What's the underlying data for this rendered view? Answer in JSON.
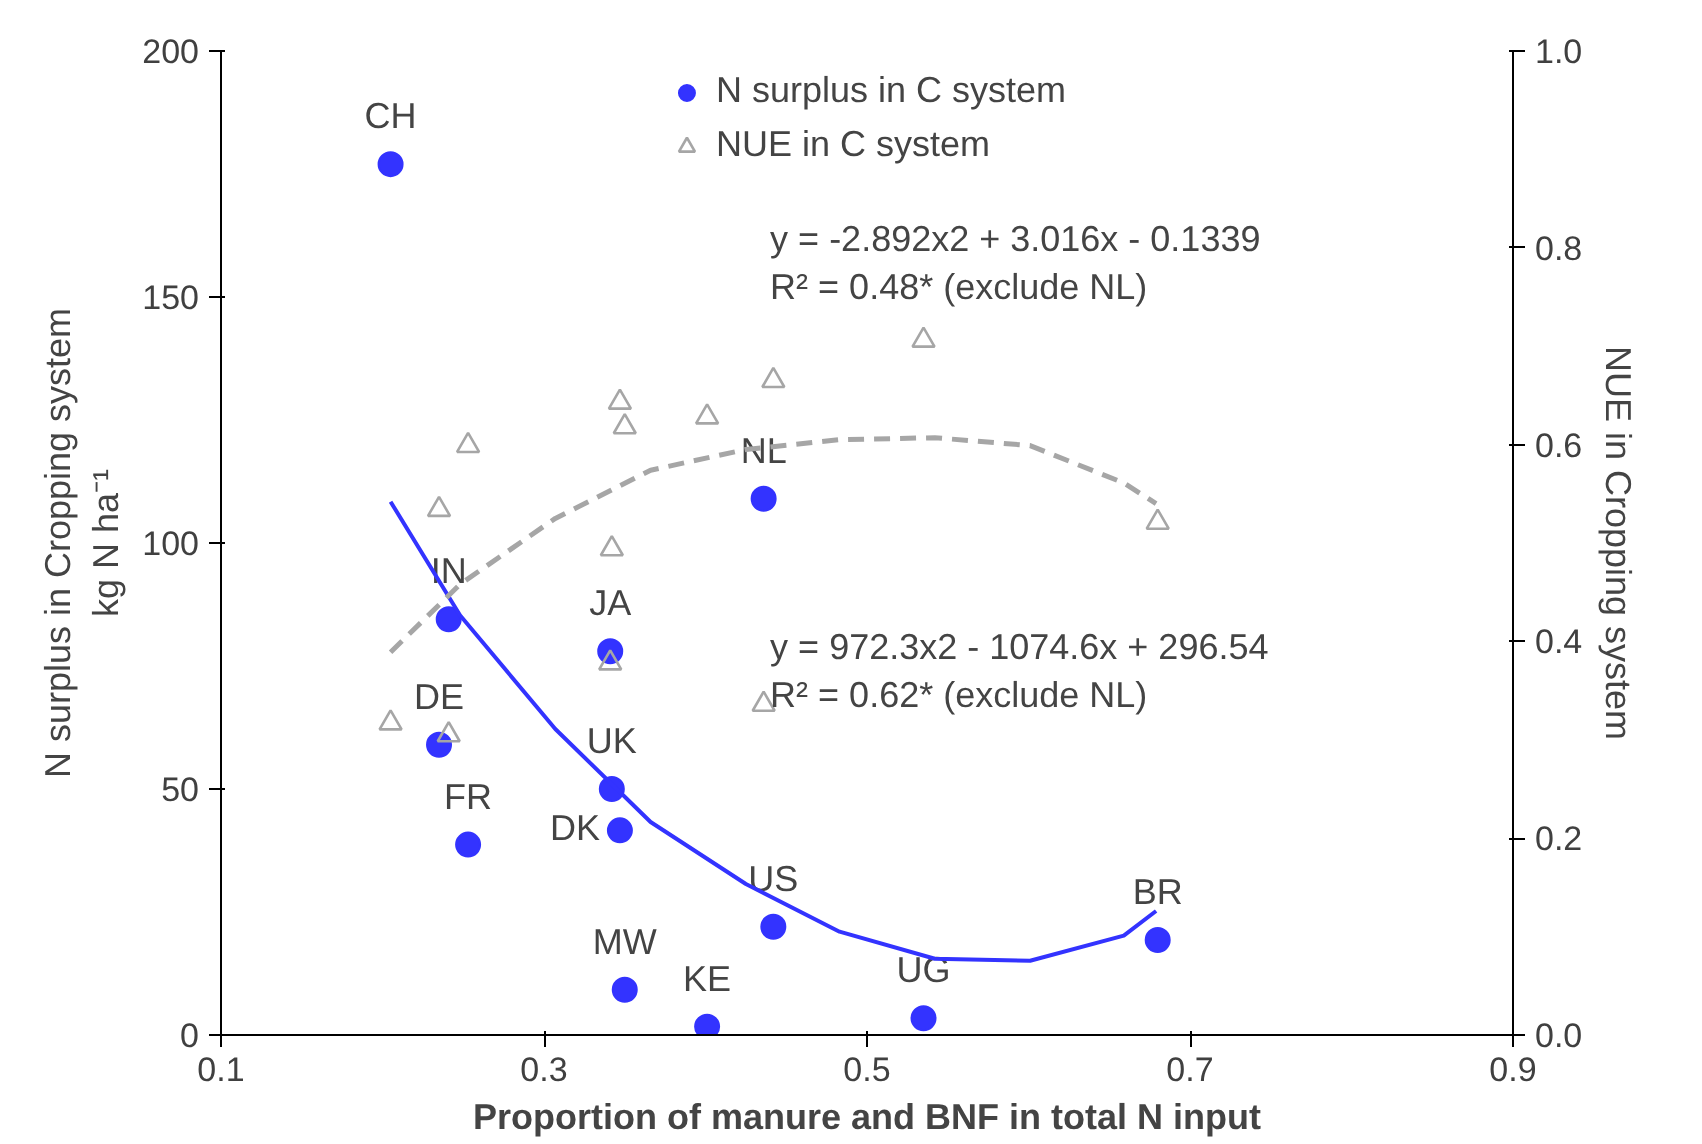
{
  "chart_data": {
    "type": "scatter",
    "xlabel": "Proportion of manure and BNF in total N input",
    "ylabel": "N surplus in Cropping system\nkg N ha⁻¹",
    "y2label": "NUE in Cropping system",
    "xlim": [
      0.1,
      0.9
    ],
    "xticks": [
      0.1,
      0.3,
      0.5,
      0.7,
      0.9
    ],
    "ylim": [
      0,
      200
    ],
    "yticks": [
      0,
      50,
      100,
      150,
      200
    ],
    "y2lim": [
      0,
      1
    ],
    "y2ticks": [
      {
        "value": 0,
        "label": "0.0"
      },
      0.2,
      0.4,
      0.6,
      0.8,
      {
        "value": 1,
        "label": "1.0"
      }
    ],
    "grid": false,
    "legend": "top",
    "series": [
      {
        "name": "N surplus in C system",
        "marker": "circle",
        "color": "#3333ff",
        "x": [
          0.205,
          0.241,
          0.235,
          0.253,
          0.341,
          0.342,
          0.347,
          0.35,
          0.401,
          0.442,
          0.436,
          0.535,
          0.68
        ],
        "values": [
          177,
          84.5,
          59,
          38.7,
          78,
          50,
          41.6,
          9.2,
          1.7,
          22,
          109,
          3.4,
          19.3
        ]
      },
      {
        "name": "NUE in C system",
        "marker": "triangle",
        "axis": "y2",
        "color": "#a6a6a6",
        "x": [
          0.205,
          0.235,
          0.241,
          0.253,
          0.341,
          0.342,
          0.347,
          0.35,
          0.401,
          0.442,
          0.436,
          0.535,
          0.68
        ],
        "values": [
          0.317,
          0.534,
          0.305,
          0.599,
          0.378,
          0.494,
          0.643,
          0.618,
          0.628,
          0.665,
          0.336,
          0.706,
          0.521
        ]
      },
      {
        "type": "line",
        "line_style": "solid",
        "color": "#3333ff",
        "x": [
          0.205,
          0.248,
          0.307,
          0.366,
          0.425,
          0.483,
          0.542,
          0.601,
          0.659,
          0.679
        ],
        "values": [
          108.4,
          85.3,
          62.2,
          43.3,
          30.7,
          21.0,
          15.5,
          15.1,
          20.2,
          25.2
        ]
      },
      {
        "type": "line",
        "line_style": "dashed",
        "axis": "y2",
        "color": "#a6a6a6",
        "x": [
          0.205,
          0.248,
          0.307,
          0.366,
          0.425,
          0.483,
          0.542,
          0.601,
          0.659,
          0.679
        ],
        "values": [
          0.389,
          0.458,
          0.525,
          0.574,
          0.595,
          0.605,
          0.607,
          0.599,
          0.561,
          0.54
        ]
      }
    ],
    "annotations": [
      {
        "text": "CH",
        "x": 0.205,
        "y": 177
      },
      {
        "text": "IN",
        "x": 0.241,
        "y": 84.5
      },
      {
        "text": "DE",
        "x": 0.235,
        "y": 59
      },
      {
        "text": "FR",
        "x": 0.253,
        "y": 38.7
      },
      {
        "text": "JA",
        "x": 0.341,
        "y": 78
      },
      {
        "text": "UK",
        "x": 0.342,
        "y": 50
      },
      {
        "text": "DK",
        "x": 0.347,
        "y": 41.6
      },
      {
        "text": "MW",
        "x": 0.35,
        "y": 9.2
      },
      {
        "text": "KE",
        "x": 0.401,
        "y": 1.7
      },
      {
        "text": "US",
        "x": 0.442,
        "y": 22
      },
      {
        "text": "NL",
        "x": 0.436,
        "y": 109
      },
      {
        "text": "UG",
        "x": 0.535,
        "y": 3.4
      },
      {
        "text": "BR",
        "x": 0.68,
        "y": 19.3
      },
      "y = -2.892x2 + 3.016x - 0.1339\nR² = 0.48* (exclude NL)",
      "y = 972.3x2 - 1074.6x + 296.54\nR² = 0.62* (exclude NL)"
    ]
  }
}
